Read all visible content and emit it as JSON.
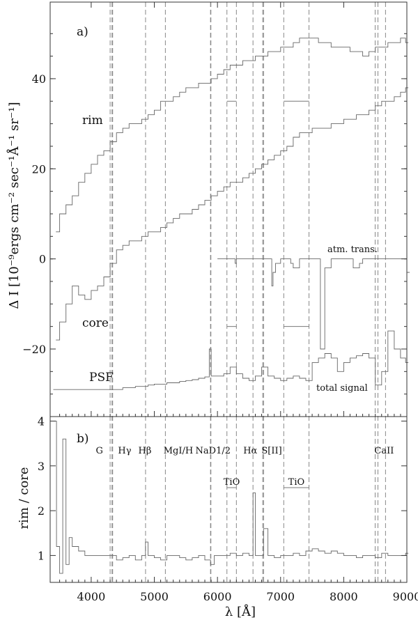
{
  "chart_data": [
    {
      "panel": "a)",
      "type": "line",
      "xlabel": "λ [Å]",
      "ylabel": "Δ I [10⁻⁹ergs cm⁻² sec⁻¹Å⁻¹ sr⁻¹]",
      "xlim": [
        3350,
        9000
      ],
      "ylim": [
        -35,
        57
      ],
      "x_ticks": [
        4000,
        5000,
        6000,
        7000,
        8000,
        9000
      ],
      "y_ticks": [
        -20,
        0,
        20,
        40
      ],
      "y_tick_labels": [
        "−20",
        "0",
        "20",
        "40"
      ],
      "series": [
        {
          "name": "rim",
          "type": "step",
          "x": [
            3440,
            3500,
            3600,
            3700,
            3800,
            3900,
            4000,
            4100,
            4200,
            4300,
            4400,
            4500,
            4600,
            4700,
            4800,
            4900,
            5000,
            5100,
            5200,
            5300,
            5400,
            5500,
            5600,
            5700,
            5800,
            5900,
            6000,
            6100,
            6200,
            6300,
            6400,
            6500,
            6600,
            6700,
            6800,
            6900,
            7000,
            7100,
            7200,
            7300,
            7400,
            7500,
            7600,
            7700,
            7800,
            7900,
            8000,
            8100,
            8200,
            8300,
            8400,
            8500,
            8600,
            8700,
            8800,
            8900,
            8980
          ],
          "y": [
            6,
            10,
            12,
            14,
            17,
            19,
            21,
            23,
            24,
            26,
            28,
            29,
            30,
            30,
            31,
            32,
            33,
            35,
            35,
            36,
            37,
            38,
            38,
            39,
            39,
            40,
            41,
            42,
            43,
            43,
            44,
            44,
            45,
            45,
            46,
            46,
            47,
            47,
            48,
            49,
            49,
            49,
            48,
            48,
            47,
            47,
            47,
            46,
            46,
            45,
            46,
            47,
            47,
            48,
            48,
            49,
            48
          ]
        },
        {
          "name": "core",
          "type": "step",
          "x": [
            3440,
            3500,
            3600,
            3700,
            3800,
            3900,
            4000,
            4100,
            4200,
            4300,
            4400,
            4500,
            4600,
            4700,
            4800,
            4900,
            5000,
            5100,
            5200,
            5300,
            5400,
            5500,
            5600,
            5700,
            5800,
            5900,
            6000,
            6100,
            6200,
            6300,
            6400,
            6500,
            6600,
            6700,
            6800,
            6900,
            7000,
            7100,
            7200,
            7300,
            7400,
            7500,
            7600,
            7700,
            7800,
            7900,
            8000,
            8100,
            8200,
            8300,
            8400,
            8500,
            8600,
            8700,
            8800,
            8900,
            8980
          ],
          "y": [
            -18,
            -14,
            -10,
            -6,
            -8,
            -9,
            -7,
            -6,
            -4,
            -1,
            2,
            3,
            4,
            4,
            5,
            6,
            6,
            7,
            8,
            9,
            10,
            10,
            11,
            12,
            13,
            14,
            15,
            16,
            17,
            17,
            18,
            19,
            20,
            21,
            22,
            23,
            24,
            25,
            27,
            28,
            28,
            29,
            29,
            29,
            30,
            30,
            31,
            31,
            32,
            32,
            33,
            34,
            35,
            35,
            36,
            37,
            38
          ]
        },
        {
          "name": "PSF",
          "type": "step",
          "x": [
            3400,
            3500,
            3700,
            4000,
            4300,
            4500,
            4700,
            4900,
            5000,
            5200,
            5400,
            5500,
            5600,
            5700,
            5800,
            5870,
            5900,
            5950,
            6000,
            6100,
            6200,
            6300,
            6400,
            6500,
            6600,
            6700,
            6800,
            6900,
            7000,
            7100,
            7200,
            7300,
            7400,
            7500,
            7600,
            7700,
            7800,
            7900,
            8000,
            8100,
            8200,
            8300,
            8400,
            8500,
            8600,
            8700,
            8800,
            8900,
            8980
          ],
          "y": [
            -29,
            -29,
            -29,
            -29,
            -29,
            -28.6,
            -28.3,
            -28,
            -27.8,
            -27.5,
            -27.2,
            -27,
            -26.8,
            -26.5,
            -26.2,
            -20,
            -26,
            -26,
            -26,
            -25.5,
            -24,
            -25.5,
            -26.5,
            -27,
            -26,
            -24,
            -26,
            -26.5,
            -27,
            -26.5,
            -26,
            -26.5,
            -27,
            -23,
            -22,
            -21,
            -22,
            -25,
            -23,
            -22,
            -21.5,
            -21,
            -22,
            -28,
            -25,
            -16,
            -20,
            -22,
            -23
          ]
        },
        {
          "name": "atm. trans.",
          "type": "step",
          "x": [
            6000,
            6250,
            6280,
            6300,
            6500,
            6860,
            6880,
            6920,
            7000,
            7160,
            7200,
            7300,
            7600,
            7630,
            7700,
            7800,
            8100,
            8150,
            8250,
            8300,
            8950,
            9000
          ],
          "y": [
            0,
            0,
            -1,
            0,
            0,
            -6,
            -3,
            -1,
            0,
            -1,
            -2,
            0,
            0,
            -20,
            -2,
            0,
            0,
            -2,
            -1,
            0,
            0,
            -3
          ]
        }
      ],
      "annotations": [
        "rim",
        "core",
        "PSF",
        "atm. trans.",
        "total signal",
        "a)"
      ]
    },
    {
      "panel": "b)",
      "type": "line",
      "xlabel": "λ [Å]",
      "ylabel": "rim / core",
      "xlim": [
        3350,
        9000
      ],
      "ylim": [
        0.4,
        4.1
      ],
      "x_ticks": [
        4000,
        5000,
        6000,
        7000,
        8000,
        9000
      ],
      "y_ticks": [
        1,
        2,
        3,
        4
      ],
      "series": [
        {
          "name": "rim / core",
          "type": "step",
          "x": [
            3400,
            3450,
            3500,
            3550,
            3600,
            3650,
            3700,
            3800,
            3900,
            4000,
            4100,
            4200,
            4300,
            4400,
            4500,
            4600,
            4700,
            4800,
            4860,
            4900,
            5000,
            5100,
            5200,
            5300,
            5400,
            5500,
            5600,
            5700,
            5800,
            5890,
            5950,
            6000,
            6100,
            6200,
            6300,
            6400,
            6500,
            6563,
            6600,
            6700,
            6730,
            6800,
            6900,
            7000,
            7100,
            7200,
            7300,
            7400,
            7500,
            7600,
            7700,
            7800,
            7900,
            8000,
            8100,
            8200,
            8300,
            8400,
            8500,
            8600,
            8700,
            8800,
            8900,
            8980
          ],
          "y": [
            4,
            1.2,
            0.6,
            3.6,
            0.8,
            1.4,
            1.2,
            1.1,
            1.0,
            1.0,
            1.0,
            1.0,
            1.0,
            0.9,
            0.95,
            1.0,
            0.9,
            1.0,
            1.3,
            1.0,
            0.95,
            0.9,
            1.0,
            1.0,
            0.95,
            0.9,
            0.95,
            1.0,
            0.9,
            0.8,
            1.0,
            1.0,
            1.0,
            1.05,
            1.0,
            1.05,
            1.0,
            2.4,
            1.0,
            1.0,
            1.6,
            1.0,
            0.95,
            1.0,
            1.0,
            1.05,
            1.0,
            1.1,
            1.15,
            1.1,
            1.05,
            1.1,
            1.05,
            1.0,
            1.0,
            0.95,
            1.0,
            1.0,
            0.95,
            1.05,
            1.0,
            1.0,
            1.0,
            1.05
          ]
        }
      ],
      "annotations": [
        "b)"
      ]
    }
  ],
  "reference_lines": [
    {
      "name": "G",
      "x": [
        4300,
        4330
      ]
    },
    {
      "name": "Hγ",
      "x": [
        4340
      ]
    },
    {
      "name": "Hβ",
      "x": [
        4861
      ]
    },
    {
      "name": "MgI/H",
      "x": [
        5175
      ]
    },
    {
      "name": "NaD1/2",
      "x": [
        5890,
        5896
      ]
    },
    {
      "name": "TiO",
      "x": [
        6150,
        6300
      ]
    },
    {
      "name": "Hα",
      "x": [
        6563
      ]
    },
    {
      "name": "S[II]",
      "x": [
        6717,
        6731
      ]
    },
    {
      "name": "TiO",
      "x": [
        7050,
        7450
      ]
    },
    {
      "name": "CaII",
      "x": [
        8498,
        8542,
        8662
      ]
    }
  ],
  "band_labels": {
    "tio_a": "TiO",
    "tio_b": "TiO"
  },
  "labels": {
    "panel_a": "a)",
    "panel_b": "b)",
    "rim": "rim",
    "core": "core",
    "psf": "PSF",
    "atm": "atm. trans.",
    "total": "total signal",
    "ylabel_a": "Δ I [10⁻⁹ergs cm⁻² sec⁻¹Å⁻¹ sr⁻¹]",
    "ylabel_b": "rim / core",
    "xlabel": "λ [Å]"
  }
}
